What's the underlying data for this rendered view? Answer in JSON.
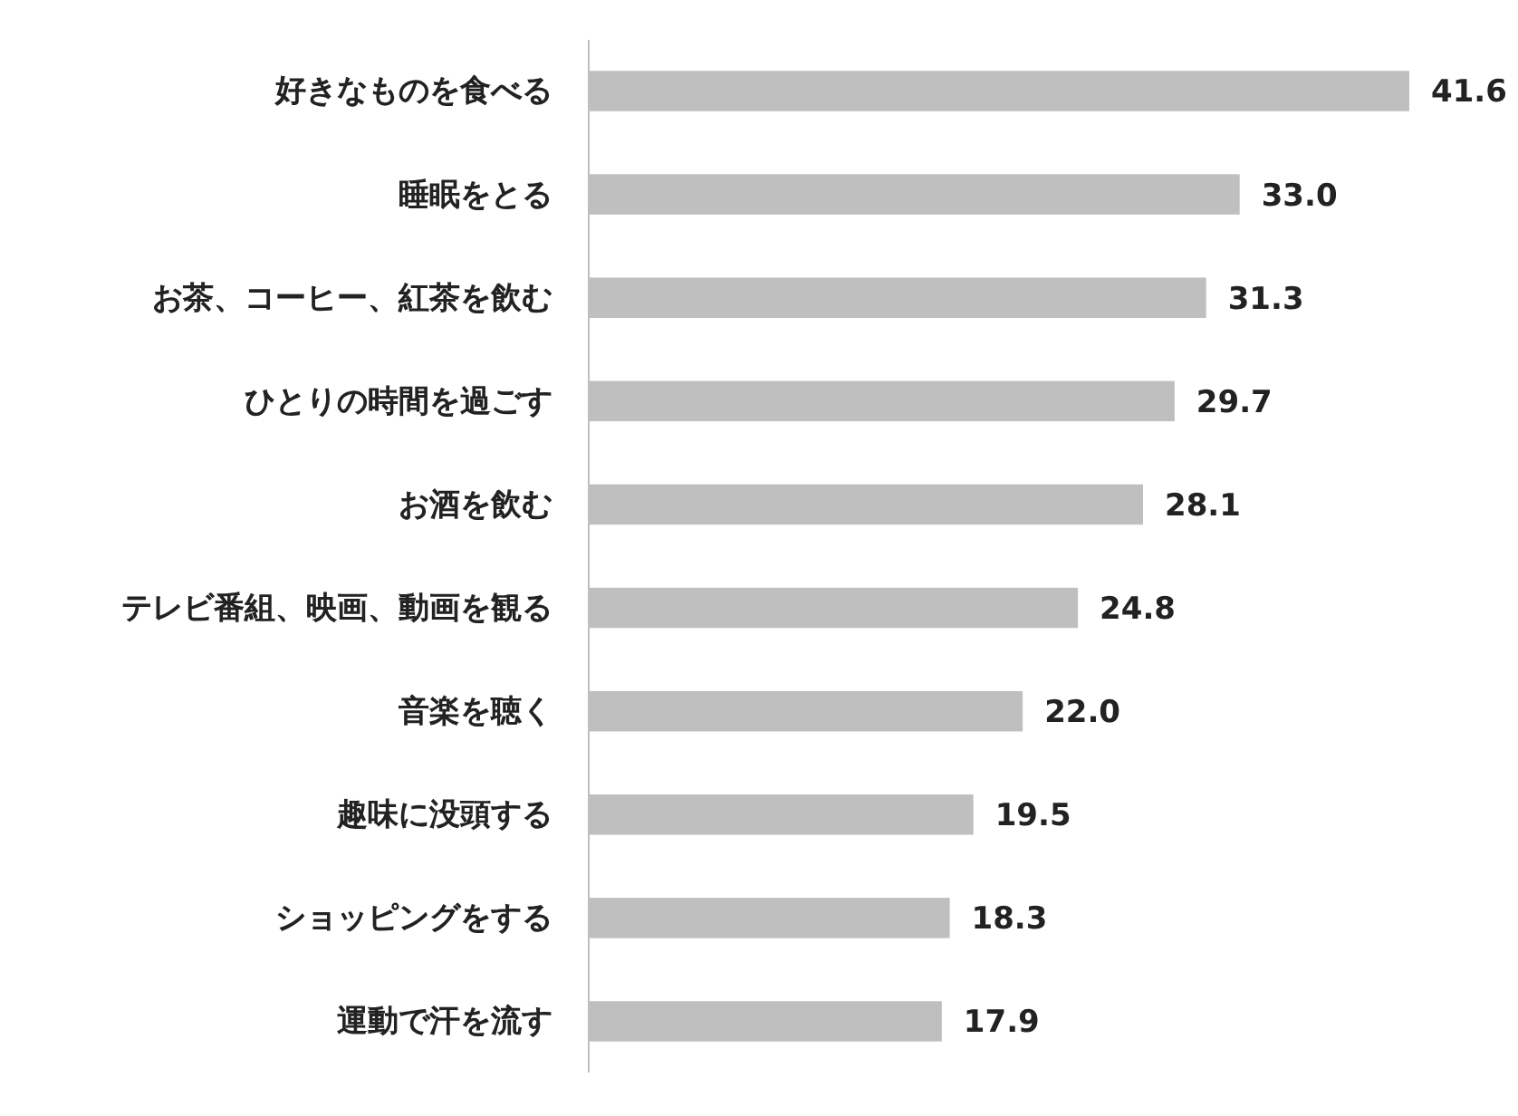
{
  "chart_data": {
    "type": "bar",
    "orientation": "horizontal",
    "categories": [
      "好きなものを食べる",
      "睡眠をとる",
      "お茶、コーヒー、紅茶を飲む",
      "ひとりの時間を過ごす",
      "お酒を飲む",
      "テレビ番組、映画、動画を観る",
      "音楽を聴く",
      "趣味に没頭する",
      "ショッピングをする",
      "運動で汗を流す"
    ],
    "values": [
      41.6,
      33.0,
      31.3,
      29.7,
      28.1,
      24.8,
      22.0,
      19.5,
      18.3,
      17.9
    ],
    "value_labels": [
      "41.6",
      "33.0",
      "31.3",
      "29.7",
      "28.1",
      "24.8",
      "22.0",
      "19.5",
      "18.3",
      "17.9"
    ],
    "color": "#bfbfbf"
  }
}
